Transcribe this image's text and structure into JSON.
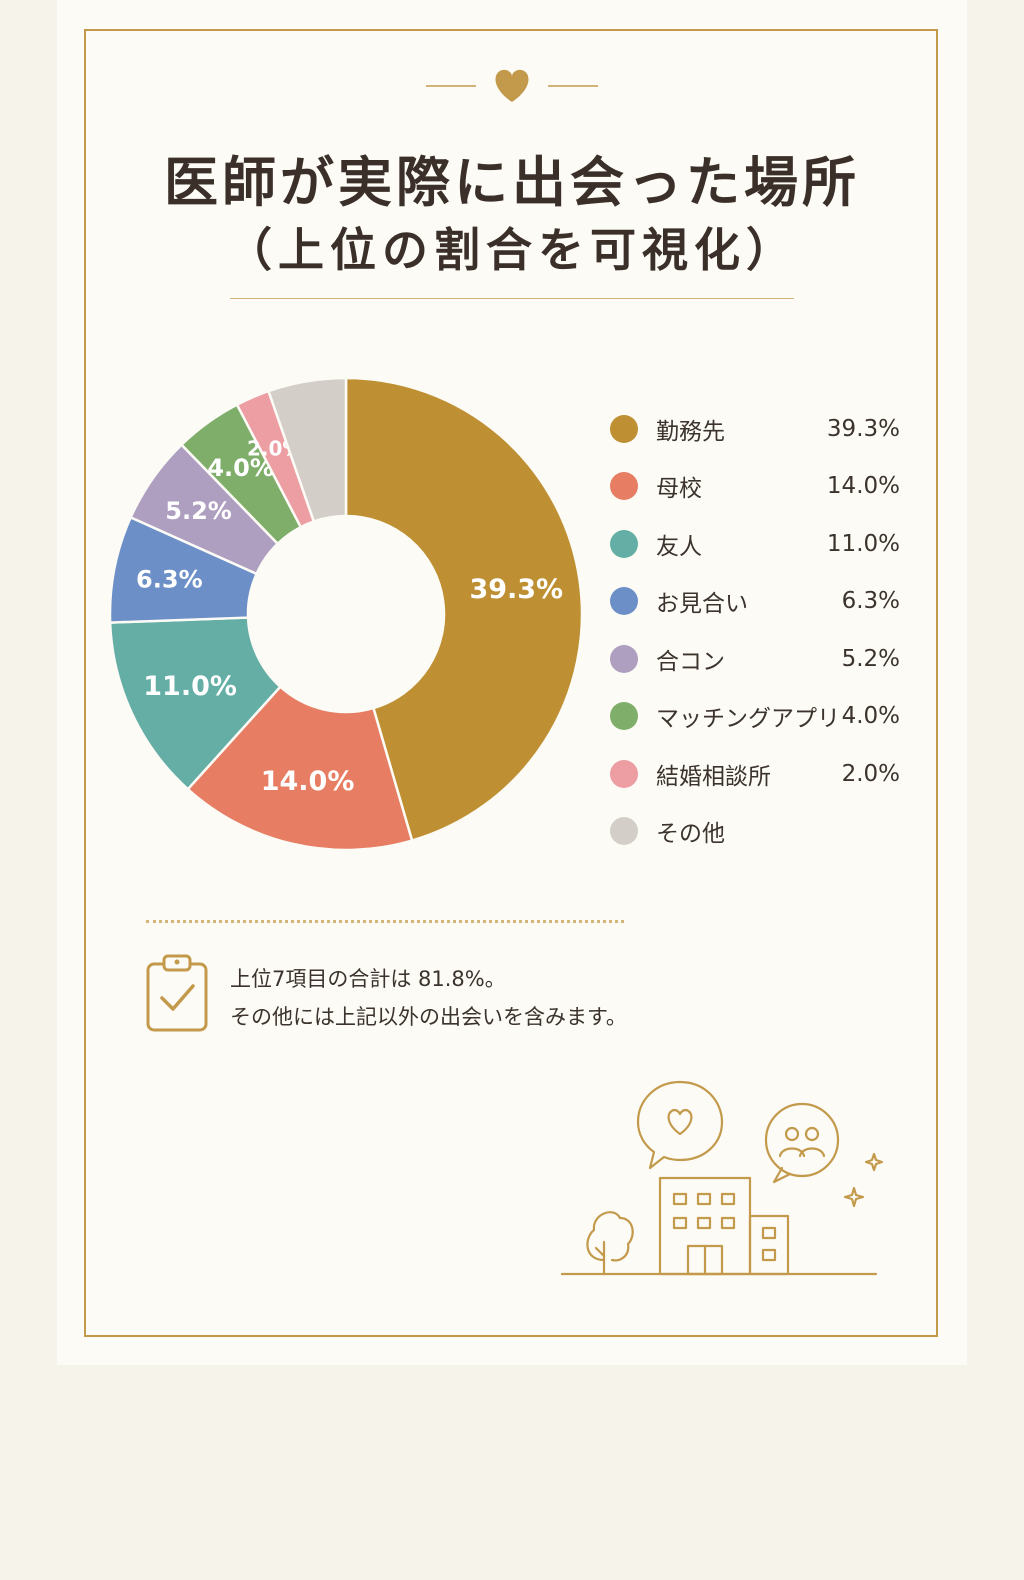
{
  "title": {
    "line1": "医師が実際に出会った場所",
    "line2": "（上位の割合を可視化）"
  },
  "icons": {
    "ornament": "heart-icon",
    "note": "clipboard-check-icon",
    "illustration": [
      "speech-heart-icon",
      "speech-people-icon",
      "sparkle-icon",
      "tree-icon",
      "building-icon"
    ]
  },
  "colors": {
    "accent": "#c39a4b",
    "title": "#3b2f29"
  },
  "chart_data": {
    "type": "pie",
    "donut": true,
    "legend_position": "right",
    "slices": [
      {
        "name": "勤務先",
        "value": 39.3,
        "label": "39.3%",
        "color": "#bf9033"
      },
      {
        "name": "母校",
        "value": 14.0,
        "label": "14.0%",
        "color": "#e77e64"
      },
      {
        "name": "友人",
        "value": 11.0,
        "label": "11.0%",
        "color": "#64aea6"
      },
      {
        "name": "お見合い",
        "value": 6.3,
        "label": "6.3%",
        "color": "#6d8fc7"
      },
      {
        "name": "合コン",
        "value": 5.2,
        "label": "5.2%",
        "color": "#ae9fc0"
      },
      {
        "name": "マッチングアプリ",
        "value": 4.0,
        "label": "4.0%",
        "color": "#7fae6b"
      },
      {
        "name": "結婚相談所",
        "value": 2.0,
        "label": "2.0%",
        "color": "#ec9ea3"
      },
      {
        "name": "その他",
        "value": 4.6,
        "label": "",
        "color": "#d3cec8"
      }
    ]
  },
  "note": {
    "line1": "上位7項目の合計は 81.8%。",
    "line2": "その他には上記以外の出会いを含みます。"
  }
}
